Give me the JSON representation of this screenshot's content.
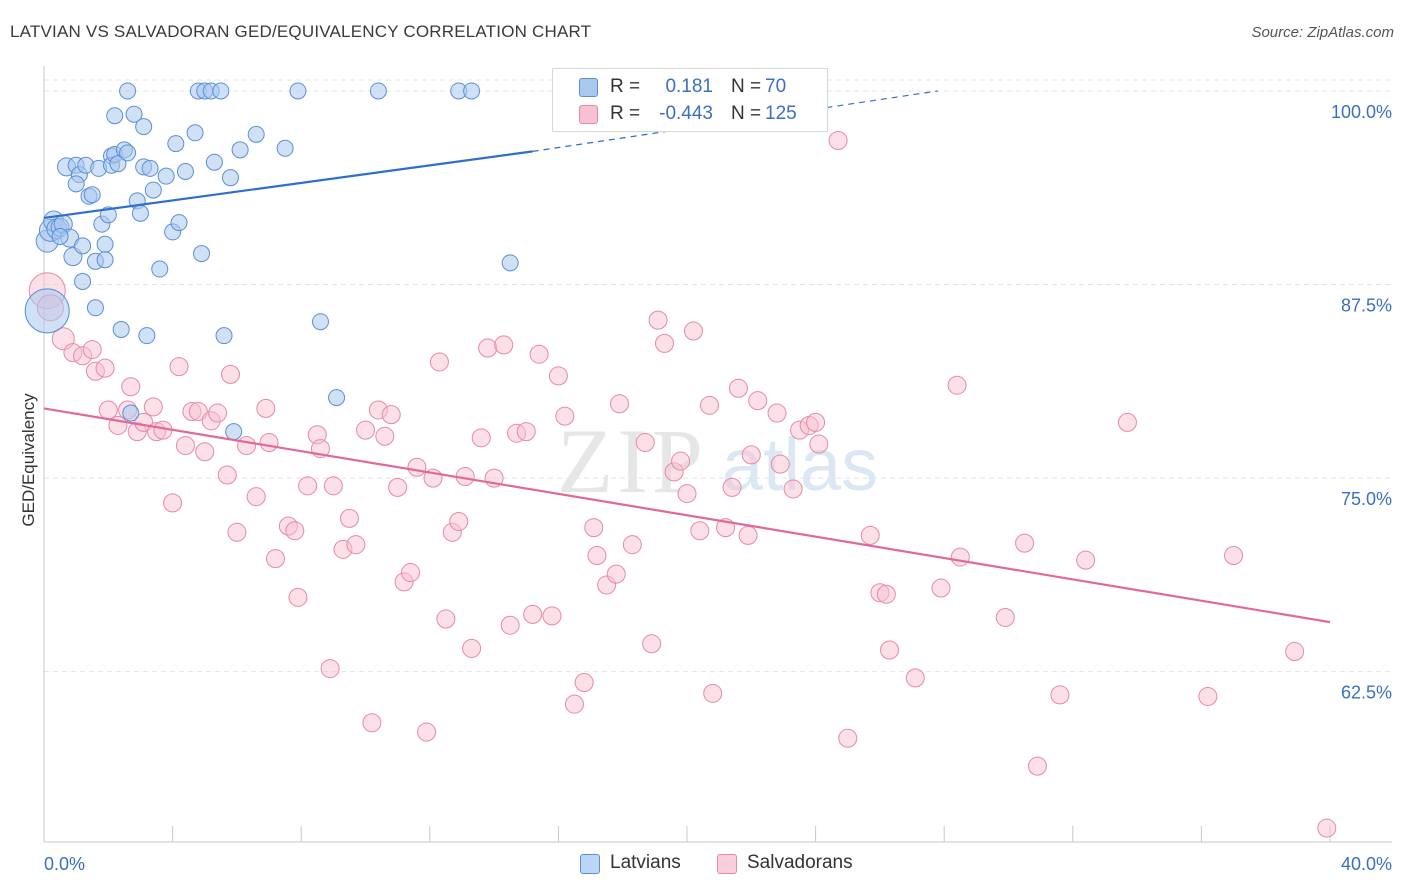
{
  "title": "LATVIAN VS SALVADORAN GED/EQUIVALENCY CORRELATION CHART",
  "source": "Source: ZipAtlas.com",
  "watermark": {
    "zip": "ZIP",
    "atlas": "atlas"
  },
  "legend_top": {
    "rows": [
      {
        "r_label": "R =",
        "r_value": "0.181",
        "n_label": "N =",
        "n_value": "70"
      },
      {
        "r_label": "R =",
        "r_value": "-0.443",
        "n_label": "N =",
        "n_value": "125"
      }
    ]
  },
  "legend_bottom": {
    "items": [
      {
        "label": "Latvians"
      },
      {
        "label": "Salvadorans"
      }
    ]
  },
  "colors": {
    "latvian_fill": "#a9c8ef",
    "latvian_stroke": "#5a8fd8",
    "latvian_line": "#2f6fcc",
    "salvadoran_fill": "#f7c1d2",
    "salvadoran_stroke": "#e888a8",
    "salvadoran_line": "#e0689a",
    "tick_label": "#3a6fc4",
    "grid": "#e4e4e4"
  },
  "chart_data": {
    "type": "scatter",
    "title": "LATVIAN VS SALVADORAN GED/EQUIVALENCY CORRELATION CHART",
    "xlabel": "",
    "ylabel": "GED/Equivalency",
    "xlim": [
      0,
      40
    ],
    "ylim": [
      51.5,
      102
    ],
    "x_tick_labels": [
      "0.0%",
      "40.0%"
    ],
    "y_ticks": [
      62.5,
      75.0,
      87.5,
      100.0
    ],
    "y_tick_labels": [
      "62.5%",
      "75.0%",
      "87.5%",
      "100.0%"
    ],
    "grid": true,
    "legend_position": "top-center",
    "series": [
      {
        "name": "Latvians",
        "r": 0.181,
        "n": 70,
        "trend": {
          "x0": 0,
          "y0": 91.8,
          "x1": 15.2,
          "y1": 96.1,
          "dashed_to_x": 27.8,
          "dashed_to_y": 100.0
        },
        "points": [
          [
            0.1,
            85.8,
            22
          ],
          [
            0.1,
            90.3,
            11
          ],
          [
            0.2,
            91.0,
            11
          ],
          [
            0.3,
            91.6,
            10
          ],
          [
            0.4,
            91.1,
            10
          ],
          [
            0.5,
            91.2,
            9
          ],
          [
            0.6,
            91.4,
            9
          ],
          [
            0.7,
            95.1,
            9
          ],
          [
            0.8,
            90.5,
            9
          ],
          [
            0.9,
            89.3,
            9
          ],
          [
            1.0,
            95.2,
            8
          ],
          [
            1.1,
            94.6,
            8
          ],
          [
            1.2,
            90.0,
            8
          ],
          [
            1.2,
            87.7,
            8
          ],
          [
            1.3,
            95.2,
            8
          ],
          [
            1.4,
            93.2,
            8
          ],
          [
            1.5,
            93.3,
            8
          ],
          [
            1.6,
            89.0,
            8
          ],
          [
            1.6,
            86.0,
            8
          ],
          [
            1.7,
            95.0,
            8
          ],
          [
            1.8,
            91.4,
            8
          ],
          [
            1.9,
            90.1,
            8
          ],
          [
            1.9,
            89.1,
            8
          ],
          [
            2.1,
            95.8,
            8
          ],
          [
            2.1,
            95.2,
            8
          ],
          [
            2.2,
            95.9,
            8
          ],
          [
            2.2,
            98.4,
            8
          ],
          [
            2.3,
            95.3,
            8
          ],
          [
            2.4,
            84.6,
            8
          ],
          [
            2.5,
            96.2,
            8
          ],
          [
            2.6,
            96.0,
            8
          ],
          [
            2.7,
            79.2,
            8
          ],
          [
            2.6,
            100.0,
            8
          ],
          [
            2.8,
            98.5,
            8
          ],
          [
            2.9,
            92.9,
            8
          ],
          [
            3.0,
            92.1,
            8
          ],
          [
            3.1,
            97.7,
            8
          ],
          [
            3.1,
            95.1,
            8
          ],
          [
            3.2,
            84.2,
            8
          ],
          [
            3.3,
            95.0,
            8
          ],
          [
            3.6,
            88.5,
            8
          ],
          [
            3.8,
            94.5,
            8
          ],
          [
            4.0,
            90.9,
            8
          ],
          [
            4.1,
            96.6,
            8
          ],
          [
            4.2,
            91.5,
            8
          ],
          [
            4.4,
            94.8,
            8
          ],
          [
            4.7,
            97.3,
            8
          ],
          [
            4.8,
            100.0,
            8
          ],
          [
            4.9,
            89.5,
            8
          ],
          [
            5.0,
            100.0,
            8
          ],
          [
            5.2,
            100.0,
            8
          ],
          [
            5.3,
            95.4,
            8
          ],
          [
            5.5,
            100.0,
            8
          ],
          [
            5.6,
            84.2,
            8
          ],
          [
            5.8,
            94.4,
            8
          ],
          [
            5.9,
            78.0,
            8
          ],
          [
            6.1,
            96.2,
            8
          ],
          [
            6.6,
            97.2,
            8
          ],
          [
            7.5,
            96.3,
            8
          ],
          [
            7.9,
            100.0,
            8
          ],
          [
            8.6,
            85.1,
            8
          ],
          [
            9.1,
            80.2,
            8
          ],
          [
            10.4,
            100.0,
            8
          ],
          [
            12.9,
            100.0,
            8
          ],
          [
            13.3,
            100.0,
            8
          ],
          [
            14.5,
            88.9,
            8
          ],
          [
            0.5,
            90.6,
            8
          ],
          [
            1.0,
            94.0,
            8
          ],
          [
            2.0,
            92.0,
            8
          ],
          [
            3.4,
            93.6,
            8
          ]
        ]
      },
      {
        "name": "Salvadorans",
        "r": -0.443,
        "n": 125,
        "trend": {
          "x0": 0,
          "y0": 79.5,
          "x1": 40,
          "y1": 65.7
        },
        "points": [
          [
            0.1,
            87.1,
            18
          ],
          [
            0.2,
            86.0,
            13
          ],
          [
            0.6,
            84.0,
            11
          ],
          [
            0.9,
            83.1,
            9
          ],
          [
            1.2,
            82.9,
            9
          ],
          [
            1.5,
            83.3,
            9
          ],
          [
            1.6,
            81.9,
            9
          ],
          [
            1.9,
            82.1,
            9
          ],
          [
            2.0,
            79.4,
            9
          ],
          [
            2.3,
            78.4,
            9
          ],
          [
            2.6,
            79.4,
            9
          ],
          [
            2.7,
            80.9,
            9
          ],
          [
            2.9,
            78.0,
            9
          ],
          [
            3.1,
            78.6,
            9
          ],
          [
            3.4,
            79.6,
            9
          ],
          [
            3.5,
            78.0,
            9
          ],
          [
            3.7,
            78.1,
            9
          ],
          [
            4.0,
            73.4,
            9
          ],
          [
            4.2,
            82.2,
            9
          ],
          [
            4.4,
            77.1,
            9
          ],
          [
            4.6,
            79.3,
            9
          ],
          [
            4.8,
            79.3,
            9
          ],
          [
            5.0,
            76.7,
            9
          ],
          [
            5.2,
            78.7,
            9
          ],
          [
            5.4,
            79.2,
            9
          ],
          [
            5.7,
            75.2,
            9
          ],
          [
            5.8,
            81.7,
            9
          ],
          [
            6.0,
            71.5,
            9
          ],
          [
            6.3,
            77.1,
            9
          ],
          [
            6.6,
            73.8,
            9
          ],
          [
            6.9,
            79.5,
            9
          ],
          [
            7.0,
            77.3,
            9
          ],
          [
            7.2,
            69.8,
            9
          ],
          [
            7.6,
            71.9,
            9
          ],
          [
            7.8,
            71.6,
            9
          ],
          [
            7.9,
            67.3,
            9
          ],
          [
            8.2,
            74.5,
            9
          ],
          [
            8.5,
            77.8,
            9
          ],
          [
            8.6,
            76.9,
            9
          ],
          [
            8.9,
            62.7,
            9
          ],
          [
            9.0,
            74.5,
            9
          ],
          [
            9.3,
            70.4,
            9
          ],
          [
            9.5,
            72.4,
            9
          ],
          [
            9.7,
            70.7,
            9
          ],
          [
            10.0,
            78.1,
            9
          ],
          [
            10.2,
            59.2,
            9
          ],
          [
            10.4,
            79.4,
            9
          ],
          [
            10.6,
            77.7,
            9
          ],
          [
            10.8,
            79.1,
            9
          ],
          [
            11.0,
            74.4,
            9
          ],
          [
            11.2,
            68.3,
            9
          ],
          [
            11.4,
            68.9,
            9
          ],
          [
            11.6,
            75.7,
            9
          ],
          [
            11.9,
            58.6,
            9
          ],
          [
            12.1,
            75.0,
            9
          ],
          [
            12.3,
            82.5,
            9
          ],
          [
            12.5,
            65.9,
            9
          ],
          [
            12.7,
            71.5,
            9
          ],
          [
            12.9,
            72.2,
            9
          ],
          [
            13.1,
            75.1,
            9
          ],
          [
            13.3,
            64.0,
            9
          ],
          [
            13.6,
            77.6,
            9
          ],
          [
            13.8,
            83.4,
            9
          ],
          [
            14.0,
            75.0,
            9
          ],
          [
            14.3,
            83.6,
            9
          ],
          [
            14.5,
            65.5,
            9
          ],
          [
            14.7,
            77.9,
            9
          ],
          [
            15.0,
            78.0,
            9
          ],
          [
            15.2,
            66.2,
            9
          ],
          [
            15.4,
            83.0,
            9
          ],
          [
            15.8,
            66.1,
            9
          ],
          [
            16.0,
            81.6,
            9
          ],
          [
            16.2,
            79.0,
            9
          ],
          [
            16.5,
            60.4,
            9
          ],
          [
            16.8,
            61.8,
            9
          ],
          [
            17.1,
            71.8,
            9
          ],
          [
            17.2,
            70.0,
            9
          ],
          [
            17.5,
            68.1,
            9
          ],
          [
            17.8,
            68.8,
            9
          ],
          [
            17.9,
            79.8,
            9
          ],
          [
            18.3,
            70.7,
            9
          ],
          [
            18.7,
            77.3,
            9
          ],
          [
            18.9,
            64.3,
            9
          ],
          [
            19.1,
            85.2,
            9
          ],
          [
            19.3,
            83.7,
            9
          ],
          [
            19.6,
            75.4,
            9
          ],
          [
            19.8,
            76.1,
            9
          ],
          [
            20.0,
            74.0,
            9
          ],
          [
            20.2,
            84.5,
            9
          ],
          [
            20.4,
            71.6,
            9
          ],
          [
            20.7,
            79.7,
            9
          ],
          [
            20.8,
            61.1,
            9
          ],
          [
            21.2,
            71.8,
            9
          ],
          [
            21.4,
            74.4,
            9
          ],
          [
            21.6,
            80.8,
            9
          ],
          [
            21.9,
            71.3,
            9
          ],
          [
            22.0,
            76.5,
            9
          ],
          [
            22.2,
            80.0,
            9
          ],
          [
            22.8,
            79.2,
            9
          ],
          [
            22.9,
            75.9,
            9
          ],
          [
            23.3,
            74.3,
            9
          ],
          [
            23.5,
            78.1,
            9
          ],
          [
            23.8,
            78.4,
            9
          ],
          [
            24.0,
            78.6,
            9
          ],
          [
            24.1,
            77.2,
            9
          ],
          [
            24.7,
            96.8,
            9
          ],
          [
            25.0,
            58.2,
            9
          ],
          [
            25.7,
            71.3,
            9
          ],
          [
            26.0,
            67.6,
            9
          ],
          [
            26.2,
            67.5,
            9
          ],
          [
            26.3,
            63.9,
            9
          ],
          [
            27.1,
            62.1,
            9
          ],
          [
            27.9,
            67.9,
            9
          ],
          [
            28.4,
            81.0,
            9
          ],
          [
            28.5,
            69.9,
            9
          ],
          [
            29.9,
            66.0,
            9
          ],
          [
            30.9,
            56.4,
            9
          ],
          [
            30.5,
            70.8,
            9
          ],
          [
            31.6,
            61.0,
            9
          ],
          [
            32.4,
            69.7,
            9
          ],
          [
            33.7,
            78.6,
            9
          ],
          [
            36.2,
            60.9,
            9
          ],
          [
            37.0,
            70.0,
            9
          ],
          [
            38.9,
            63.8,
            9
          ],
          [
            39.9,
            52.4,
            9
          ]
        ]
      }
    ]
  }
}
